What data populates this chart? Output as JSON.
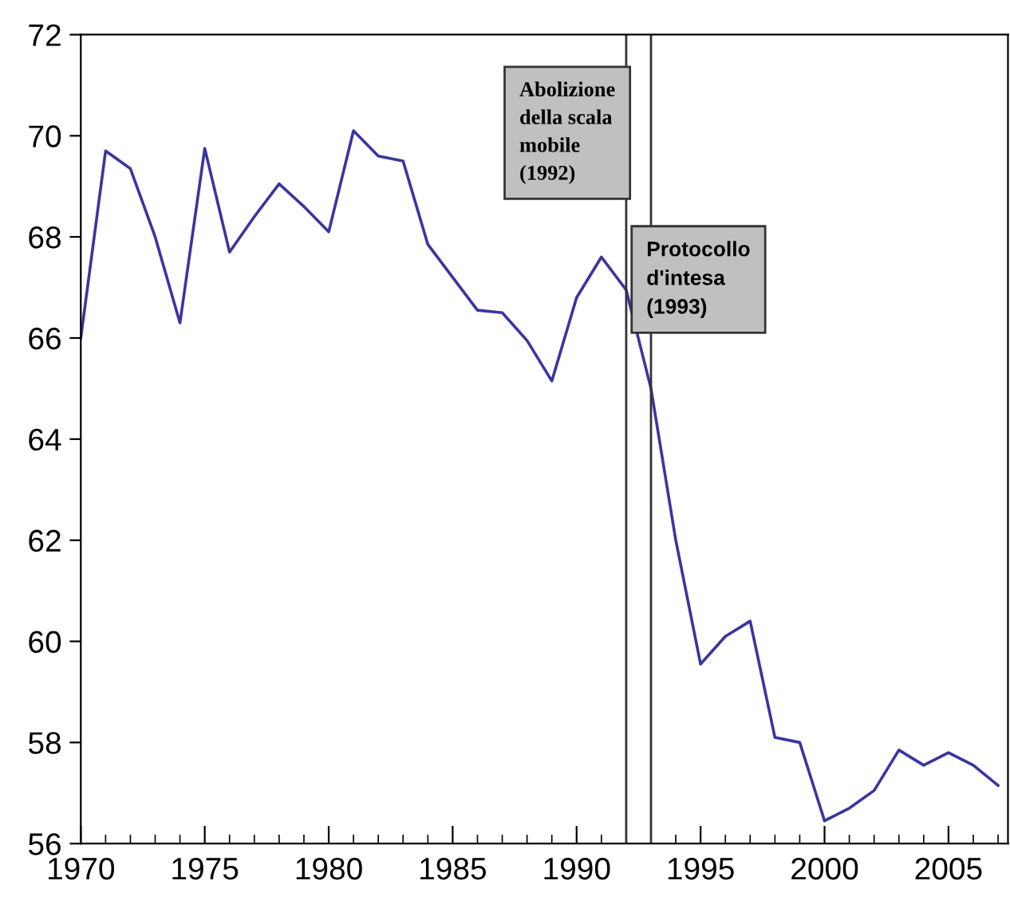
{
  "chart_data": {
    "type": "line",
    "x": [
      1970,
      1971,
      1972,
      1973,
      1974,
      1975,
      1976,
      1977,
      1978,
      1979,
      1980,
      1981,
      1982,
      1983,
      1984,
      1985,
      1986,
      1987,
      1988,
      1989,
      1990,
      1991,
      1992,
      1993,
      1994,
      1995,
      1996,
      1997,
      1998,
      1999,
      2000,
      2001,
      2002,
      2003,
      2004,
      2005,
      2006,
      2007
    ],
    "series": [
      {
        "color": "#3b35a0",
        "values": [
          66.0,
          69.7,
          69.35,
          68.0,
          66.3,
          69.75,
          67.7,
          68.4,
          69.05,
          68.6,
          68.1,
          70.1,
          69.6,
          69.5,
          67.85,
          67.2,
          66.55,
          66.5,
          65.95,
          65.15,
          66.8,
          67.6,
          66.95,
          65.0,
          62.0,
          59.55,
          60.1,
          60.4,
          58.1,
          58.0,
          56.45,
          56.7,
          57.05,
          57.85,
          57.55,
          57.8,
          57.55,
          57.15
        ]
      }
    ],
    "xlim": [
      1970,
      2007.4
    ],
    "ylim": [
      56,
      72
    ],
    "xticks": [
      1970,
      1975,
      1980,
      1985,
      1990,
      1995,
      2000,
      2005
    ],
    "yticks": [
      56,
      58,
      60,
      62,
      64,
      66,
      68,
      70,
      72
    ],
    "ref_lines": [
      {
        "axis": "x",
        "value": 1992,
        "color": "#333333"
      },
      {
        "axis": "x",
        "value": 1993,
        "color": "#333333"
      }
    ],
    "annotations": [
      "Abolizione\ndella scala\nmobile\n(1992)",
      "Protocollo\nd'intesa\n(1993)"
    ],
    "grid": false,
    "legend": false
  }
}
